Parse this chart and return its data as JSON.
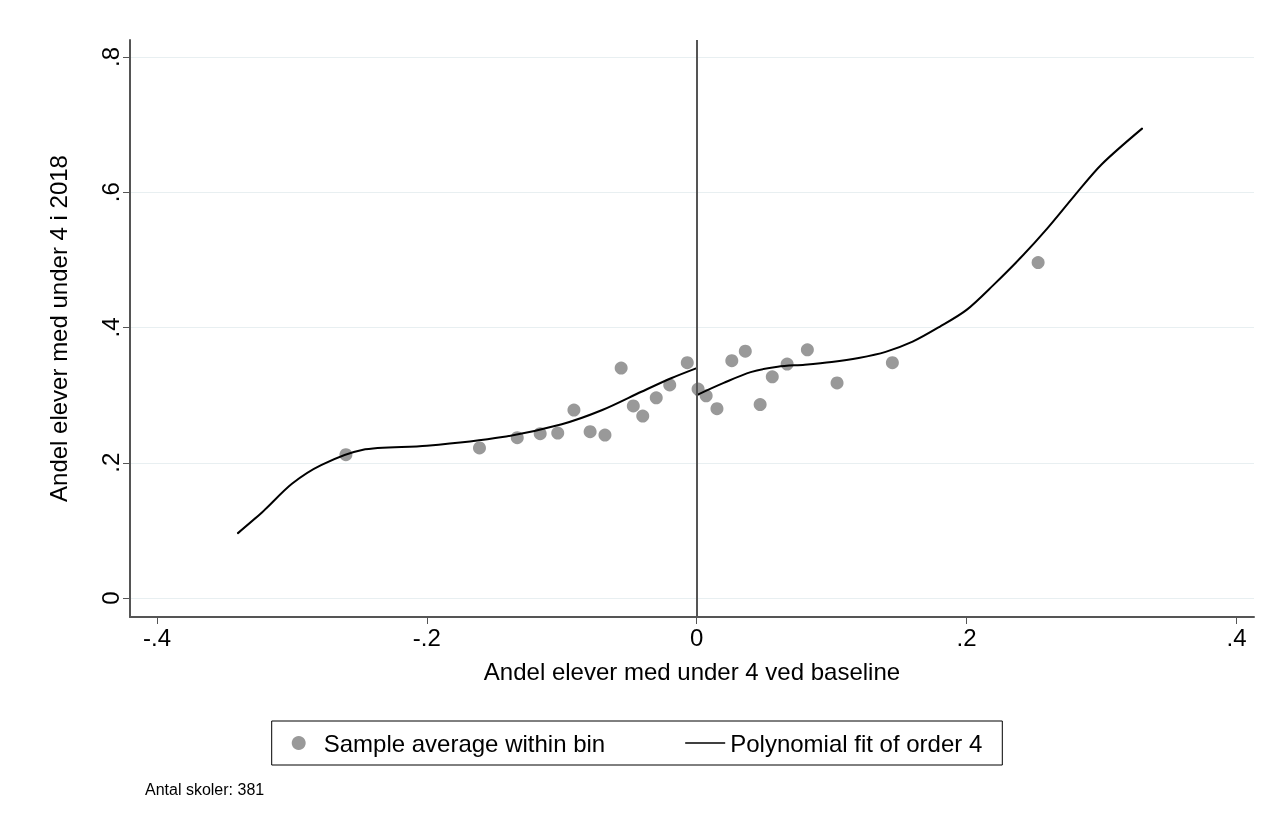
{
  "chart_data": {
    "type": "scatter",
    "xlabel": "Andel elever med under 4 ved baseline",
    "ylabel": "Andel elever med under 4 i 2018",
    "annotations": [
      "Antal skoler: 381"
    ],
    "xlim": [
      -0.42,
      0.413
    ],
    "ylim": [
      -0.028,
      0.825
    ],
    "xticks": [
      {
        "value": -0.4,
        "label": "-.4"
      },
      {
        "value": -0.2,
        "label": "-.2"
      },
      0,
      {
        "value": 0.2,
        "label": ".2"
      },
      {
        "value": 0.4,
        "label": ".4"
      }
    ],
    "yticks": [
      0,
      {
        "value": 0.2,
        "label": ".2"
      },
      {
        "value": 0.4,
        "label": ".4"
      },
      {
        "value": 0.6,
        "label": ".6"
      },
      {
        "value": 0.8,
        "label": ".8"
      }
    ],
    "grid": "y",
    "legend": "bottom",
    "marker": "circle",
    "ref_lines": [
      {
        "axis": "x",
        "value": 0,
        "color": "#555555"
      }
    ],
    "series": [
      {
        "name": "Sample average within bin",
        "color": "#999999",
        "x": [
          -0.26,
          -0.161,
          -0.133,
          -0.116,
          -0.103,
          -0.091,
          -0.079,
          -0.068,
          -0.056,
          -0.047,
          -0.04,
          -0.03,
          -0.02,
          -0.007,
          0.001,
          0.007,
          0.015,
          0.026,
          0.036,
          0.047,
          0.056,
          0.067,
          0.082,
          0.104,
          0.145,
          0.253
        ],
        "values": [
          0.212,
          0.222,
          0.237,
          0.243,
          0.244,
          0.278,
          0.246,
          0.241,
          0.34,
          0.284,
          0.269,
          0.296,
          0.315,
          0.348,
          0.309,
          0.299,
          0.28,
          0.351,
          0.365,
          0.286,
          0.327,
          0.346,
          0.367,
          0.318,
          0.348,
          0.496
        ]
      },
      {
        "name": "Polynomial fit of order 4",
        "type": "line",
        "color": "#000000",
        "marker": "none",
        "x": [
          -0.34,
          -0.322,
          -0.3,
          -0.278,
          -0.248,
          -0.2,
          -0.144,
          -0.1,
          -0.07,
          -0.041,
          -0.019,
          0
        ],
        "values": [
          0.096,
          0.127,
          0.169,
          0.197,
          0.219,
          0.225,
          0.238,
          0.257,
          0.278,
          0.305,
          0.325,
          0.34
        ]
      },
      {
        "type": "line",
        "color": "#000000",
        "marker": "none",
        "x": [
          0,
          0.02,
          0.04,
          0.06,
          0.08,
          0.1,
          0.12,
          0.14,
          0.16,
          0.18,
          0.2,
          0.22,
          0.24,
          0.26,
          0.28,
          0.3,
          0.33
        ],
        "values": [
          0.3,
          0.318,
          0.334,
          0.342,
          0.345,
          0.349,
          0.355,
          0.364,
          0.379,
          0.401,
          0.426,
          0.463,
          0.503,
          0.547,
          0.595,
          0.641,
          0.694
        ]
      }
    ]
  }
}
